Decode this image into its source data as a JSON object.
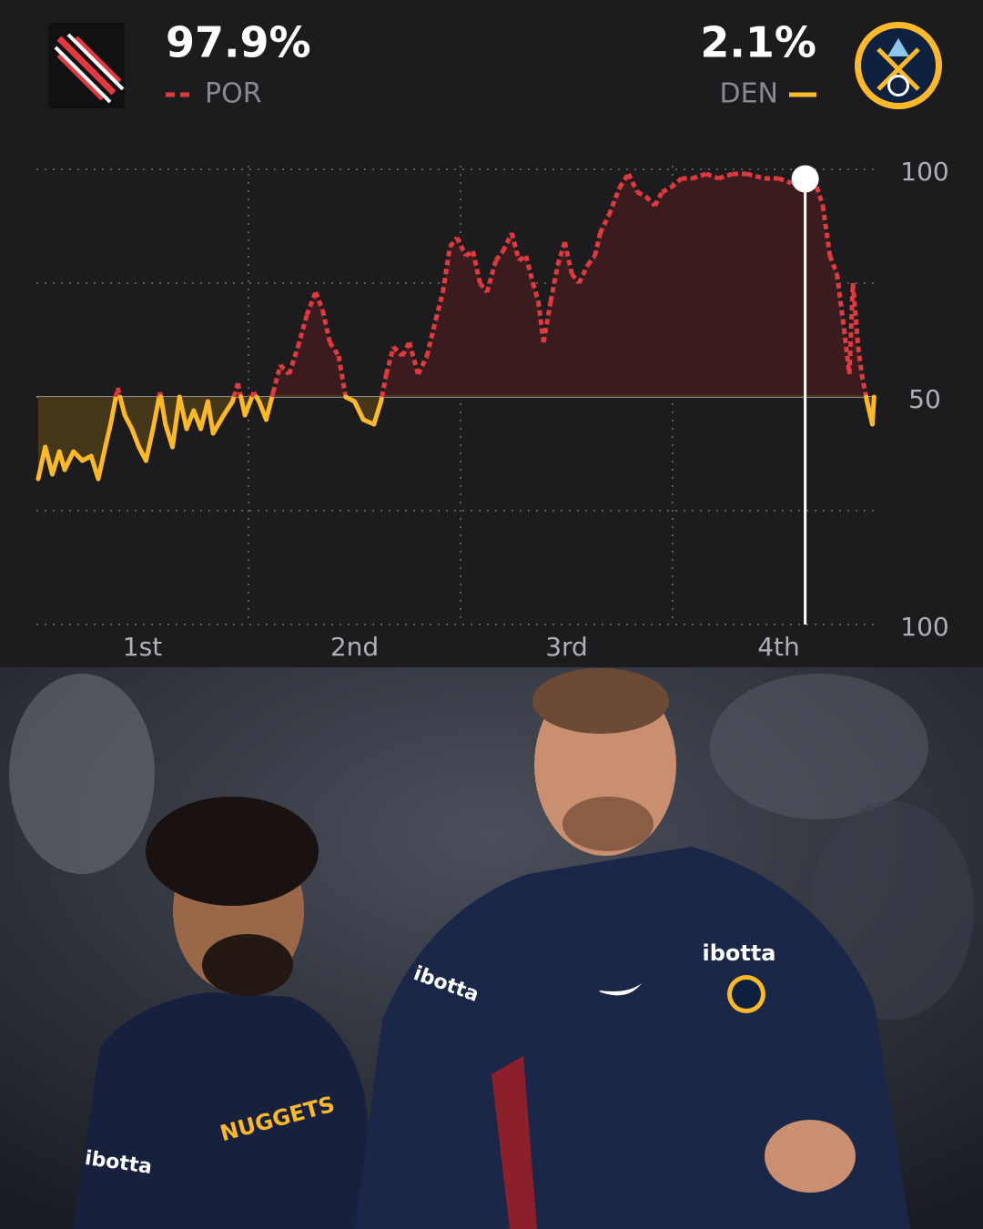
{
  "chart_data": {
    "type": "win_probability",
    "teams": [
      {
        "name": "POR",
        "color": "#e0393e",
        "fill": "#3b1c1e",
        "style": "dashed",
        "win_prob": 97.9,
        "win_prob_label": "97.9%"
      },
      {
        "name": "DEN",
        "color": "#fdb927",
        "fill": "#453719",
        "style": "solid",
        "win_prob": 2.1,
        "win_prob_label": "2.1%"
      }
    ],
    "x": [
      0.1,
      0.5,
      0.9,
      1.3,
      1.6,
      2.1,
      2.6,
      3.1,
      3.5,
      3.9,
      4.2,
      4.6,
      5.0,
      5.4,
      5.8,
      6.2,
      6.6,
      7.0,
      7.3,
      7.7,
      8.1,
      8.5,
      8.9,
      9.3,
      9.7,
      10.0,
      10.6,
      11.1,
      11.4,
      11.8,
      12.3,
      12.6,
      13.0,
      13.4,
      13.8,
      14.3,
      14.8,
      15.3,
      15.8,
      16.2,
      16.6,
      17.1,
      17.5,
      18.0,
      18.5,
      19.1,
      19.5,
      19.8,
      20.2,
      20.7,
      21.1,
      21.6,
      22.1,
      22.6,
      23.0,
      23.4,
      23.8,
      24.3,
      24.7,
      25.1,
      25.5,
      26.0,
      26.4,
      26.9,
      27.3,
      27.7,
      28.1,
      28.4,
      28.7,
      29.1,
      29.5,
      29.9,
      30.3,
      30.7,
      31.2,
      31.6,
      31.9,
      32.4,
      33.0,
      33.5,
      34.0,
      34.5,
      35.0,
      35.4,
      35.9,
      36.5,
      37.1,
      37.9,
      38.6,
      39.4,
      40.2,
      41.2,
      42.0,
      42.7,
      43.5,
      44.0,
      44.5,
      44.9,
      45.3,
      45.7,
      46.0,
      46.2,
      46.5,
      46.7,
      47.0,
      47.3,
      47.4
    ],
    "values": [
      32,
      39,
      33,
      38,
      34,
      38,
      36,
      37,
      32,
      39,
      44,
      52,
      46,
      43,
      39,
      36,
      43,
      51,
      44,
      39,
      50,
      43,
      47,
      43,
      49,
      42,
      46,
      49,
      53,
      46,
      51,
      49,
      45,
      51,
      57,
      55,
      61,
      68,
      73,
      69,
      62,
      59,
      50,
      49,
      45,
      44,
      49,
      55,
      61,
      59,
      62,
      55,
      59,
      67,
      73,
      83,
      85,
      81,
      82,
      75,
      73,
      80,
      82,
      86,
      80,
      81,
      75,
      71,
      62,
      71,
      79,
      84,
      77,
      75,
      79,
      81,
      86,
      90,
      96,
      99,
      95,
      94,
      92,
      95,
      96,
      98,
      98,
      99,
      98,
      99,
      99,
      98,
      98,
      97,
      99,
      98,
      92,
      81,
      77,
      65,
      55,
      75,
      61,
      55,
      49,
      44,
      50
    ],
    "xlim": [
      0,
      48
    ],
    "ylim": [
      0,
      100
    ],
    "xticks": [
      {
        "value": 6,
        "label": "1st"
      },
      {
        "value": 18,
        "label": "2nd"
      },
      {
        "value": 30,
        "label": "3rd"
      },
      {
        "value": 42,
        "label": "4th"
      }
    ],
    "xgrid": [
      12,
      24,
      36
    ],
    "yticks": [
      {
        "value": 100,
        "label": "100"
      },
      {
        "value": 75,
        "label": null
      },
      {
        "value": 50,
        "label": "50"
      },
      {
        "value": 25,
        "label": null
      },
      {
        "value": 0,
        "label": "100"
      }
    ],
    "marker_x": 43.5,
    "grid": true
  },
  "photo": {
    "texts": [
      "ibotta",
      "ibotta",
      "ibotta",
      "NUGGETS"
    ]
  }
}
